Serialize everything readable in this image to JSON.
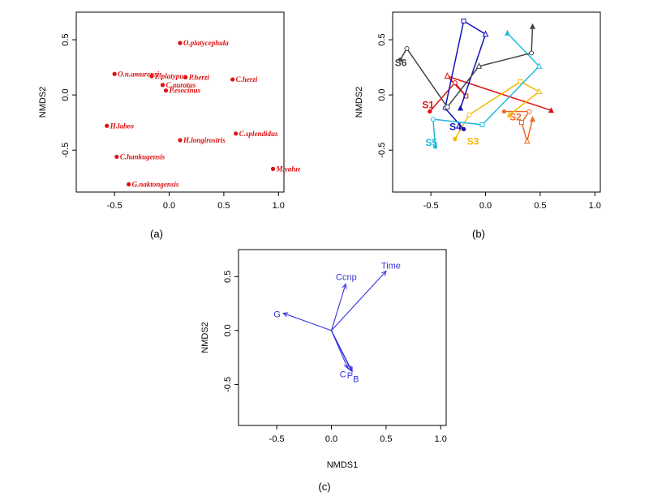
{
  "colors": {
    "species": "#dd1111",
    "vector": "#3333dd",
    "S1": "#dd1111",
    "S2": "#ee6622",
    "S3": "#f5b800",
    "S4": "#1111bb",
    "S5": "#22bbdd",
    "S6": "#444444"
  },
  "chart_data": [
    {
      "id": "a",
      "type": "scatter",
      "panel_label": "(a)",
      "xlabel": "",
      "ylabel": "NMDS2",
      "xlim": [
        -0.85,
        1.05
      ],
      "ylim": [
        -0.88,
        0.75
      ],
      "xticks": [
        -0.5,
        0.0,
        0.5,
        1.0
      ],
      "xtick_labels": [
        "-0.5",
        "0.0",
        "0.5",
        "1.0"
      ],
      "yticks": [
        -0.5,
        0.0,
        0.5
      ],
      "ytick_labels": [
        "-0.5",
        "0.0",
        "0.5"
      ],
      "points": [
        {
          "label": "O.platycephala",
          "x": 0.1,
          "y": 0.47
        },
        {
          "label": "O.n.amurensis",
          "x": -0.5,
          "y": 0.19
        },
        {
          "label": "Z.platypus",
          "x": -0.16,
          "y": 0.17
        },
        {
          "label": "P.herzi",
          "x": 0.15,
          "y": 0.16
        },
        {
          "label": "C.auratus",
          "x": -0.06,
          "y": 0.09
        },
        {
          "label": "P.esocinus",
          "x": -0.03,
          "y": 0.04
        },
        {
          "label": "C.herzi",
          "x": 0.58,
          "y": 0.14
        },
        {
          "label": "H.labeo",
          "x": -0.57,
          "y": -0.28
        },
        {
          "label": "H.longirostris",
          "x": 0.1,
          "y": -0.41
        },
        {
          "label": "C.splendidus",
          "x": 0.61,
          "y": -0.35
        },
        {
          "label": "C.hankugensis",
          "x": -0.48,
          "y": -0.56
        },
        {
          "label": "M.yaluensis",
          "x": 0.95,
          "y": -0.67
        },
        {
          "label": "G.naktongensis",
          "x": -0.37,
          "y": -0.81
        }
      ]
    },
    {
      "id": "b",
      "type": "line",
      "panel_label": "(b)",
      "xlabel": "",
      "ylabel": "NMDS2",
      "xlim": [
        -0.85,
        1.05
      ],
      "ylim": [
        -0.88,
        0.75
      ],
      "xticks": [
        -0.5,
        0.0,
        0.5,
        1.0
      ],
      "xtick_labels": [
        "-0.5",
        "0.0",
        "0.5",
        "1.0"
      ],
      "yticks": [
        -0.5,
        0.0,
        0.5
      ],
      "ytick_labels": [
        "-0.5",
        "0.0",
        "0.5"
      ],
      "series": [
        {
          "name": "S1",
          "label_pos": [
            -0.58,
            -0.12
          ],
          "points": [
            [
              -0.51,
              -0.15
            ],
            [
              -0.28,
              0.11
            ],
            [
              -0.18,
              -0.01
            ],
            [
              -0.35,
              0.17
            ],
            [
              0.6,
              -0.14
            ]
          ]
        },
        {
          "name": "S2",
          "label_pos": [
            0.22,
            -0.23
          ],
          "points": [
            [
              0.17,
              -0.15
            ],
            [
              0.4,
              -0.15
            ],
            [
              0.33,
              -0.25
            ],
            [
              0.38,
              -0.42
            ],
            [
              0.43,
              -0.22
            ]
          ]
        },
        {
          "name": "S3",
          "label_pos": [
            -0.17,
            -0.45
          ],
          "points": [
            [
              -0.28,
              -0.4
            ],
            [
              -0.15,
              -0.18
            ],
            [
              0.32,
              0.12
            ],
            [
              0.49,
              0.03
            ],
            [
              0.22,
              -0.18
            ]
          ]
        },
        {
          "name": "S4",
          "label_pos": [
            -0.33,
            -0.32
          ],
          "points": [
            [
              -0.2,
              -0.31
            ],
            [
              -0.37,
              -0.12
            ],
            [
              -0.2,
              0.67
            ],
            [
              0.0,
              0.55
            ],
            [
              -0.23,
              -0.12
            ]
          ]
        },
        {
          "name": "S5",
          "label_pos": [
            -0.55,
            -0.46
          ],
          "points": [
            [
              -0.46,
              -0.47
            ],
            [
              -0.48,
              -0.22
            ],
            [
              -0.03,
              -0.27
            ],
            [
              0.49,
              0.26
            ],
            [
              0.2,
              0.56
            ]
          ]
        },
        {
          "name": "S6",
          "label_pos": [
            -0.83,
            0.26
          ],
          "points": [
            [
              -0.78,
              0.32
            ],
            [
              -0.72,
              0.42
            ],
            [
              -0.35,
              -0.11
            ],
            [
              -0.06,
              0.26
            ],
            [
              0.42,
              0.38
            ],
            [
              0.43,
              0.62
            ]
          ]
        }
      ]
    },
    {
      "id": "c",
      "type": "vector",
      "panel_label": "(c)",
      "xlabel": "NMDS1",
      "ylabel": "NMDS2",
      "xlim": [
        -0.85,
        1.05
      ],
      "ylim": [
        -0.88,
        0.75
      ],
      "xticks": [
        -0.5,
        0.0,
        0.5,
        1.0
      ],
      "xtick_labels": [
        "-0.5",
        "0.0",
        "0.5",
        "1.0"
      ],
      "yticks": [
        -0.5,
        0.0,
        0.5
      ],
      "ytick_labels": [
        "-0.5",
        "0.0",
        "0.5"
      ],
      "vectors": [
        {
          "label": "Time",
          "x": 0.5,
          "y": 0.55
        },
        {
          "label": "Ccnp",
          "x": 0.13,
          "y": 0.43
        },
        {
          "label": "G",
          "x": -0.44,
          "y": 0.16
        },
        {
          "label": "C",
          "x": 0.15,
          "y": -0.35
        },
        {
          "label": "P",
          "x": 0.18,
          "y": -0.37
        },
        {
          "label": "B",
          "x": 0.19,
          "y": -0.38
        }
      ]
    }
  ]
}
